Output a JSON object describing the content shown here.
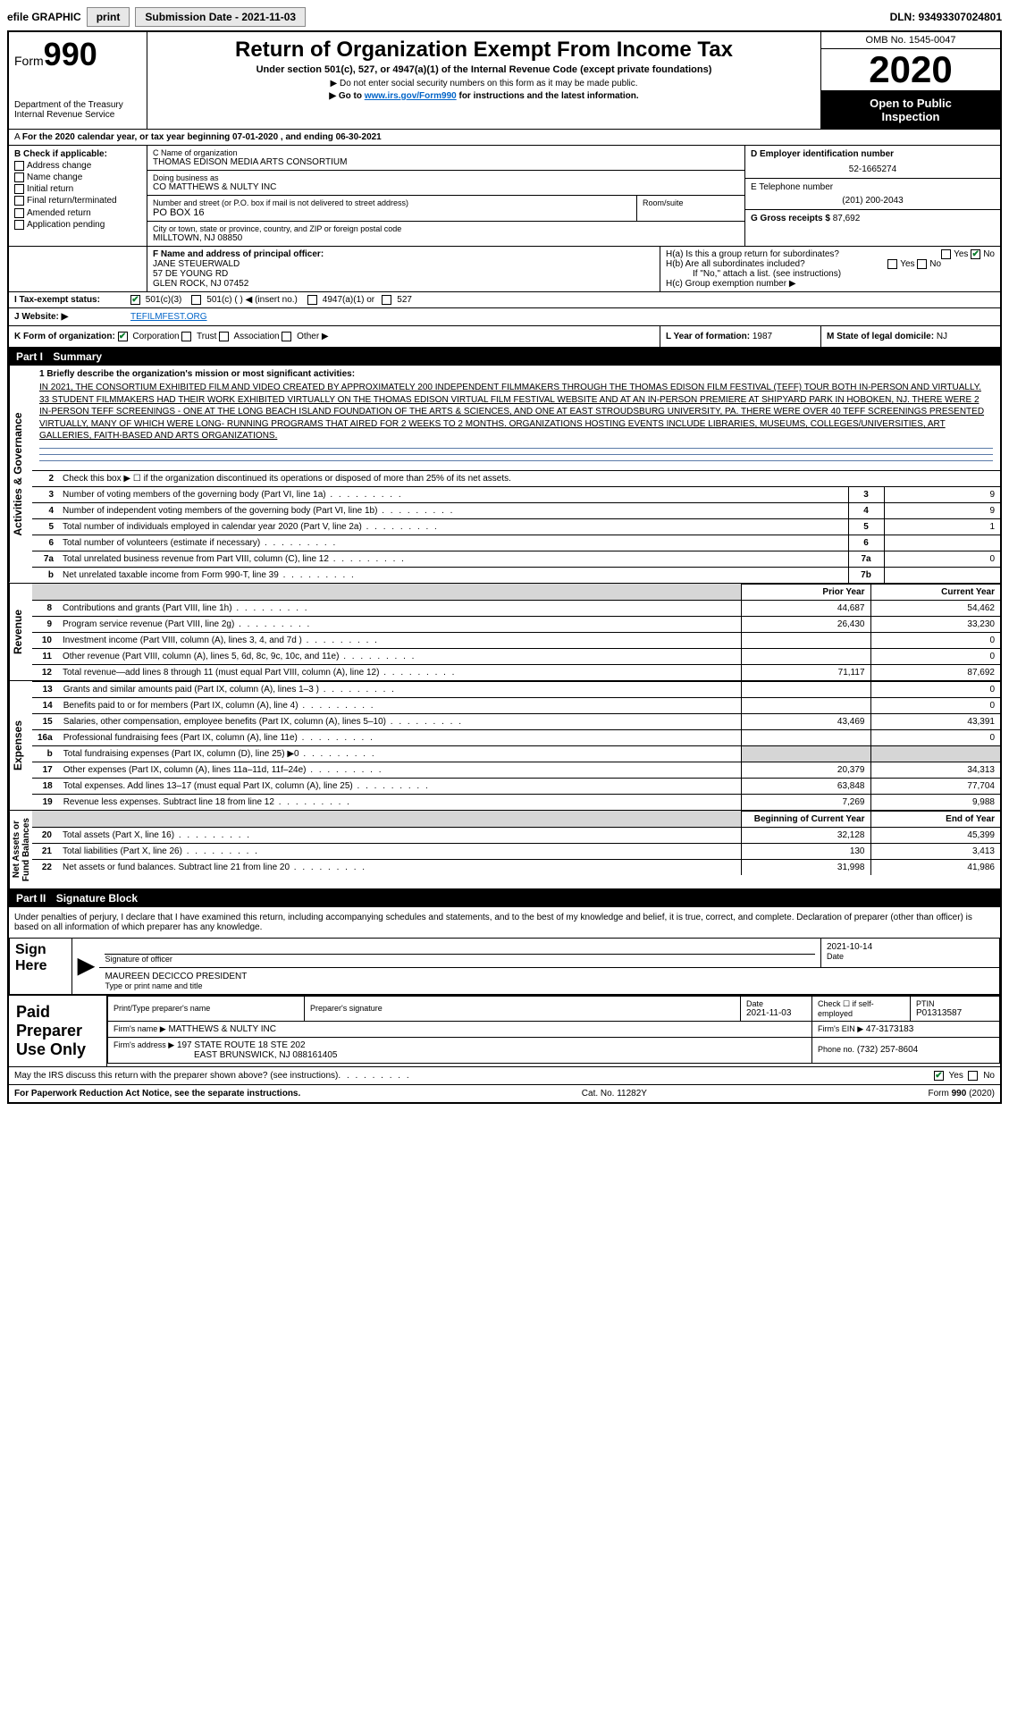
{
  "topbar": {
    "efile": "efile GRAPHIC",
    "print": "print",
    "subdate_label": "Submission Date - 2021-11-03",
    "dln": "DLN: 93493307024801"
  },
  "header": {
    "form_prefix": "Form",
    "form_number": "990",
    "title": "Return of Organization Exempt From Income Tax",
    "subtitle": "Under section 501(c), 527, or 4947(a)(1) of the Internal Revenue Code (except private foundations)",
    "note1": "▶ Do not enter social security numbers on this form as it may be made public.",
    "note2_pre": "▶ Go to ",
    "note2_link": "www.irs.gov/Form990",
    "note2_post": " for instructions and the latest information.",
    "dept": "Department of the Treasury\nInternal Revenue Service",
    "omb": "OMB No. 1545-0047",
    "year": "2020",
    "inspection": "Open to Public\nInspection"
  },
  "taxyear": "For the 2020 calendar year, or tax year beginning 07-01-2020    , and ending 06-30-2021",
  "identB": {
    "label": "B Check if applicable:",
    "opts": [
      "Address change",
      "Name change",
      "Initial return",
      "Final return/terminated",
      "Amended return",
      "Application pending"
    ]
  },
  "identC": {
    "name_label": "C Name of organization",
    "name": "THOMAS EDISON MEDIA ARTS CONSORTIUM",
    "dba_label": "Doing business as",
    "dba": "CO MATTHEWS & NULTY INC",
    "addr_label": "Number and street (or P.O. box if mail is not delivered to street address)",
    "addr": "PO BOX 16",
    "room_label": "Room/suite",
    "city_label": "City or town, state or province, country, and ZIP or foreign postal code",
    "city": "MILLTOWN, NJ  08850"
  },
  "identD": {
    "label": "D Employer identification number",
    "val": "52-1665274"
  },
  "identE": {
    "label": "E Telephone number",
    "val": "(201) 200-2043"
  },
  "identG": {
    "label": "G Gross receipts $",
    "val": "87,692"
  },
  "officer": {
    "label": "F  Name and address of principal officer:",
    "name": "JANE STEUERWALD",
    "addr1": "57 DE YOUNG RD",
    "addr2": "GLEN ROCK, NJ  07452"
  },
  "H": {
    "a": "H(a)  Is this a group return for subordinates?",
    "b": "H(b)  Are all subordinates included?",
    "bno": "If \"No,\" attach a list. (see instructions)",
    "c": "H(c)  Group exemption number ▶"
  },
  "I": {
    "label": "I   Tax-exempt status:",
    "o1": "501(c)(3)",
    "o2": "501(c) (  ) ◀ (insert no.)",
    "o3": "4947(a)(1) or",
    "o4": "527"
  },
  "J": {
    "label": "J   Website: ▶",
    "val": "TEFILMFEST.ORG"
  },
  "K": {
    "label": "K Form of organization:",
    "o1": "Corporation",
    "o2": "Trust",
    "o3": "Association",
    "o4": "Other ▶"
  },
  "L": {
    "label": "L Year of formation:",
    "val": "1987"
  },
  "M": {
    "label": "M State of legal domicile:",
    "val": "NJ"
  },
  "part1": {
    "label": "Part I",
    "title": "Summary"
  },
  "governance_tab": "Activities & Governance",
  "mission": {
    "l1": "1  Briefly describe the organization's mission or most significant activities:",
    "desc": "IN 2021, THE CONSORTIUM EXHIBITED FILM AND VIDEO CREATED BY APPROXIMATELY 200 INDEPENDENT FILMMAKERS THROUGH THE THOMAS EDISON FILM FESTIVAL (TEFF) TOUR BOTH IN-PERSON AND VIRTUALLY. 33 STUDENT FILMMAKERS HAD THEIR WORK EXHIBITED VIRTUALLY ON THE THOMAS EDISON VIRTUAL FILM FESTIVAL WEBSITE AND AT AN IN-PERSON PREMIERE AT SHIPYARD PARK IN HOBOKEN, NJ. THERE WERE 2 IN-PERSON TEFF SCREENINGS - ONE AT THE LONG BEACH ISLAND FOUNDATION OF THE ARTS & SCIENCES, AND ONE AT EAST STROUDSBURG UNIVERSITY, PA. THERE WERE OVER 40 TEFF SCREENINGS PRESENTED VIRTUALLY, MANY OF WHICH WERE LONG- RUNNING PROGRAMS THAT AIRED FOR 2 WEEKS TO 2 MONTHS. ORGANIZATIONS HOSTING EVENTS INCLUDE LIBRARIES, MUSEUMS, COLLEGES/UNIVERSITIES, ART GALLERIES, FAITH-BASED AND ARTS ORGANIZATIONS."
  },
  "gov_lines": [
    {
      "n": "2",
      "d": "Check this box ▶ ☐ if the organization discontinued its operations or disposed of more than 25% of its net assets.",
      "box": "",
      "v": ""
    },
    {
      "n": "3",
      "d": "Number of voting members of the governing body (Part VI, line 1a)",
      "box": "3",
      "v": "9"
    },
    {
      "n": "4",
      "d": "Number of independent voting members of the governing body (Part VI, line 1b)",
      "box": "4",
      "v": "9"
    },
    {
      "n": "5",
      "d": "Total number of individuals employed in calendar year 2020 (Part V, line 2a)",
      "box": "5",
      "v": "1"
    },
    {
      "n": "6",
      "d": "Total number of volunteers (estimate if necessary)",
      "box": "6",
      "v": ""
    },
    {
      "n": "7a",
      "d": "Total unrelated business revenue from Part VIII, column (C), line 12",
      "box": "7a",
      "v": "0"
    },
    {
      "n": "b",
      "d": "Net unrelated taxable income from Form 990-T, line 39",
      "box": "7b",
      "v": ""
    }
  ],
  "revenue_tab": "Revenue",
  "expenses_tab": "Expenses",
  "netassets_tab": "Net Assets or\nFund Balances",
  "col_headers": {
    "prior": "Prior Year",
    "current": "Current Year",
    "boc": "Beginning of Current Year",
    "eoy": "End of Year"
  },
  "rev_lines": [
    {
      "n": "8",
      "d": "Contributions and grants (Part VIII, line 1h)",
      "p": "44,687",
      "c": "54,462"
    },
    {
      "n": "9",
      "d": "Program service revenue (Part VIII, line 2g)",
      "p": "26,430",
      "c": "33,230"
    },
    {
      "n": "10",
      "d": "Investment income (Part VIII, column (A), lines 3, 4, and 7d )",
      "p": "",
      "c": "0"
    },
    {
      "n": "11",
      "d": "Other revenue (Part VIII, column (A), lines 5, 6d, 8c, 9c, 10c, and 11e)",
      "p": "",
      "c": "0"
    },
    {
      "n": "12",
      "d": "Total revenue—add lines 8 through 11 (must equal Part VIII, column (A), line 12)",
      "p": "71,117",
      "c": "87,692"
    }
  ],
  "exp_lines": [
    {
      "n": "13",
      "d": "Grants and similar amounts paid (Part IX, column (A), lines 1–3 )",
      "p": "",
      "c": "0"
    },
    {
      "n": "14",
      "d": "Benefits paid to or for members (Part IX, column (A), line 4)",
      "p": "",
      "c": "0"
    },
    {
      "n": "15",
      "d": "Salaries, other compensation, employee benefits (Part IX, column (A), lines 5–10)",
      "p": "43,469",
      "c": "43,391"
    },
    {
      "n": "16a",
      "d": "Professional fundraising fees (Part IX, column (A), line 11e)",
      "p": "",
      "c": "0"
    },
    {
      "n": "b",
      "d": "Total fundraising expenses (Part IX, column (D), line 25) ▶0",
      "p": "GREY",
      "c": "GREY"
    },
    {
      "n": "17",
      "d": "Other expenses (Part IX, column (A), lines 11a–11d, 11f–24e)",
      "p": "20,379",
      "c": "34,313"
    },
    {
      "n": "18",
      "d": "Total expenses. Add lines 13–17 (must equal Part IX, column (A), line 25)",
      "p": "63,848",
      "c": "77,704"
    },
    {
      "n": "19",
      "d": "Revenue less expenses. Subtract line 18 from line 12",
      "p": "7,269",
      "c": "9,988"
    }
  ],
  "na_lines": [
    {
      "n": "20",
      "d": "Total assets (Part X, line 16)",
      "p": "32,128",
      "c": "45,399"
    },
    {
      "n": "21",
      "d": "Total liabilities (Part X, line 26)",
      "p": "130",
      "c": "3,413"
    },
    {
      "n": "22",
      "d": "Net assets or fund balances. Subtract line 21 from line 20",
      "p": "31,998",
      "c": "41,986"
    }
  ],
  "part2": {
    "label": "Part II",
    "title": "Signature Block"
  },
  "penalties": "Under penalties of perjury, I declare that I have examined this return, including accompanying schedules and statements, and to the best of my knowledge and belief, it is true, correct, and complete. Declaration of preparer (other than officer) is based on all information of which preparer has any knowledge.",
  "sign": {
    "here": "Sign\nHere",
    "sig_label": "Signature of officer",
    "date_label": "Date",
    "date": "2021-10-14",
    "name": "MAUREEN DECICCO PRESIDENT",
    "name_label": "Type or print name and title"
  },
  "paid": {
    "label": "Paid\nPreparer\nUse Only",
    "h1": "Print/Type preparer's name",
    "h2": "Preparer's signature",
    "h3_label": "Date",
    "h3": "2021-11-03",
    "h4": "Check ☐ if self-employed",
    "h5_label": "PTIN",
    "h5": "P01313587",
    "firm_label": "Firm's name    ▶",
    "firm": "MATTHEWS & NULTY INC",
    "ein_label": "Firm's EIN ▶",
    "ein": "47-3173183",
    "addr_label": "Firm's address ▶",
    "addr1": "197 STATE ROUTE 18 STE 202",
    "addr2": "EAST BRUNSWICK, NJ  088161405",
    "phone_label": "Phone no.",
    "phone": "(732) 257-8604"
  },
  "discuss": "May the IRS discuss this return with the preparer shown above? (see instructions)",
  "footer": {
    "left": "For Paperwork Reduction Act Notice, see the separate instructions.",
    "mid": "Cat. No. 11282Y",
    "right": "Form 990 (2020)"
  },
  "yesno": {
    "yes": "Yes",
    "no": "No"
  }
}
